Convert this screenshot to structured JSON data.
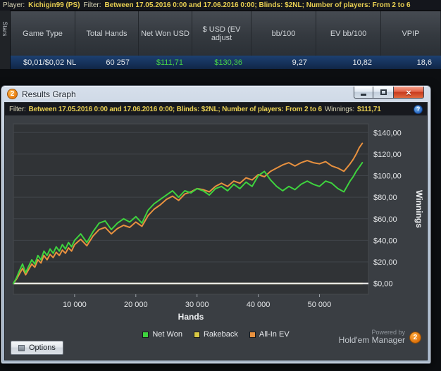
{
  "topbar": {
    "player_label": "Player:",
    "player_value": "Kichigin99 (PS)",
    "filter_label": "Filter:",
    "filter_value": "Between 17.05.2016 0:00 and 17.06.2016 0:00; Blinds: $2NL; Number of players: From 2 to 6"
  },
  "stats_table": {
    "side_tab": "Stars",
    "columns": [
      "Game Type",
      "Total Hands",
      "Net Won USD",
      "$ USD (EV adjust",
      "bb/100",
      "EV bb/100",
      "VPIP"
    ],
    "row": {
      "game_type": "$0,01/$0,02 NL",
      "total_hands": "60 257",
      "net_won": "$111,71",
      "usd_ev": "$130,36",
      "bb100": "9,27",
      "ev_bb100": "10,82",
      "vpip": "18,6"
    }
  },
  "window": {
    "title": "Results Graph",
    "icon_text": "2",
    "filter_bar": {
      "filter_label": "Filter:",
      "filter_value": "Between 17.05.2016 0:00 and 17.06.2016 0:00; Blinds: $2NL; Number of players: From 2 to 6",
      "winnings_label": "Winnings:",
      "winnings_value": "$111,71"
    },
    "options_label": "Options",
    "powered_by_line1": "Powered by",
    "powered_by_line2": "Hold'em Manager",
    "brand_badge": "2"
  },
  "chart_data": {
    "type": "line",
    "xlabel": "Hands",
    "ylabel": "Winnings",
    "xlim": [
      0,
      58000
    ],
    "ylim": [
      -10,
      148
    ],
    "grid": "horizontal",
    "legend_position": "bottom",
    "x_ticks": [
      {
        "value": 10000,
        "label": "10 000"
      },
      {
        "value": 20000,
        "label": "20 000"
      },
      {
        "value": 30000,
        "label": "30 000"
      },
      {
        "value": 40000,
        "label": "40 000"
      },
      {
        "value": 50000,
        "label": "50 000"
      }
    ],
    "y_ticks": [
      {
        "value": 0,
        "label": "$0,00"
      },
      {
        "value": 20,
        "label": "$20,00"
      },
      {
        "value": 40,
        "label": "$40,00"
      },
      {
        "value": 60,
        "label": "$60,00"
      },
      {
        "value": 80,
        "label": "$80,00"
      },
      {
        "value": 100,
        "label": "$100,00"
      },
      {
        "value": 120,
        "label": "$120,00"
      },
      {
        "value": 140,
        "label": "$140,00"
      }
    ],
    "legend": [
      {
        "name": "Net Won",
        "color": "#3ed33e"
      },
      {
        "name": "Rakeback",
        "color": "#d9c945"
      },
      {
        "name": "All-In EV",
        "color": "#e8913f"
      }
    ],
    "series": [
      {
        "name": "Rakeback",
        "color": "#d9c945",
        "constant": 0,
        "draw_order": 0
      },
      {
        "name": "All-In EV",
        "color": "#e8913f",
        "x": [
          0,
          500,
          1000,
          1500,
          2000,
          2500,
          3000,
          3500,
          4000,
          4500,
          5000,
          5500,
          6000,
          6500,
          7000,
          7500,
          8000,
          8500,
          9000,
          9500,
          10000,
          11000,
          12000,
          13000,
          14000,
          15000,
          16000,
          17000,
          18000,
          19000,
          20000,
          21000,
          22000,
          23000,
          24000,
          25000,
          26000,
          27000,
          28000,
          29000,
          30000,
          31000,
          32000,
          33000,
          34000,
          35000,
          36000,
          37000,
          38000,
          39000,
          40000,
          41000,
          42000,
          43000,
          44000,
          45000,
          46000,
          47000,
          48000,
          49000,
          50000,
          51000,
          52000,
          53000,
          54000,
          55000,
          55500,
          56000,
          56500,
          57000
        ],
        "values": [
          0,
          4,
          9,
          14,
          8,
          13,
          18,
          15,
          22,
          19,
          26,
          22,
          27,
          24,
          29,
          26,
          31,
          28,
          33,
          30,
          36,
          41,
          35,
          44,
          50,
          52,
          46,
          51,
          54,
          52,
          57,
          53,
          63,
          69,
          73,
          78,
          81,
          77,
          83,
          85,
          88,
          87,
          85,
          90,
          93,
          90,
          95,
          93,
          98,
          96,
          101,
          99,
          104,
          107,
          110,
          112,
          109,
          112,
          114,
          112,
          111,
          113,
          109,
          107,
          104,
          111,
          115,
          120,
          126,
          130
        ]
      },
      {
        "name": "Net Won",
        "color": "#3ed33e",
        "x": [
          0,
          500,
          1000,
          1500,
          2000,
          2500,
          3000,
          3500,
          4000,
          4500,
          5000,
          5500,
          6000,
          6500,
          7000,
          7500,
          8000,
          8500,
          9000,
          9500,
          10000,
          11000,
          12000,
          13000,
          14000,
          15000,
          16000,
          17000,
          18000,
          19000,
          20000,
          21000,
          22000,
          23000,
          24000,
          25000,
          26000,
          27000,
          28000,
          29000,
          30000,
          31000,
          32000,
          33000,
          34000,
          35000,
          36000,
          37000,
          38000,
          39000,
          40000,
          41000,
          42000,
          43000,
          44000,
          45000,
          46000,
          47000,
          48000,
          49000,
          50000,
          51000,
          52000,
          53000,
          54000,
          55000,
          55500,
          56000,
          56500,
          57000
        ],
        "values": [
          0,
          5,
          12,
          18,
          10,
          16,
          22,
          18,
          26,
          22,
          30,
          26,
          32,
          28,
          34,
          30,
          36,
          32,
          38,
          34,
          40,
          46,
          38,
          48,
          56,
          58,
          50,
          56,
          60,
          57,
          62,
          56,
          68,
          74,
          78,
          82,
          86,
          80,
          86,
          84,
          88,
          86,
          82,
          88,
          90,
          86,
          92,
          88,
          94,
          90,
          100,
          104,
          96,
          90,
          86,
          90,
          87,
          92,
          95,
          92,
          90,
          95,
          93,
          88,
          85,
          95,
          99,
          104,
          108,
          112
        ]
      }
    ],
    "final_values": {
      "net_won": "$111,71",
      "all_in_ev": "$130,36"
    }
  }
}
